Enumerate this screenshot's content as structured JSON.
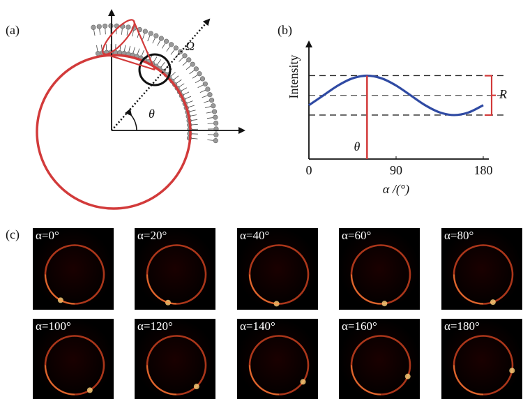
{
  "panel_a": {
    "label": "(a)",
    "theta": "θ",
    "omega": "Ω"
  },
  "chart_data": {
    "type": "line",
    "label": "(b)",
    "y_label": "Intensity",
    "x_label": "α /(°)",
    "x": [
      0,
      15,
      30,
      45,
      60,
      75,
      90,
      105,
      120,
      135,
      150,
      165,
      180
    ],
    "series": [
      {
        "color": "#2f4aa3",
        "values": [
          0.465,
          0.55,
          0.635,
          0.697,
          0.72,
          0.697,
          0.635,
          0.55,
          0.465,
          0.403,
          0.38,
          0.403,
          0.465
        ]
      }
    ],
    "xlim": [
      0,
      180
    ],
    "ylim": [
      0,
      1
    ],
    "xticks": [
      0,
      90,
      180
    ],
    "reference_lines": [
      0.72,
      0.55,
      0.38
    ],
    "theta_x": 60,
    "theta_label": "θ",
    "range_label": "R",
    "marker_color": "#d23a3a"
  },
  "panel_c": {
    "label": "(c)",
    "images": [
      "α=0°",
      "α=20°",
      "α=40°",
      "α=60°",
      "α=80°",
      "α=100°",
      "α=120°",
      "α=140°",
      "α=160°",
      "α=180°"
    ]
  }
}
